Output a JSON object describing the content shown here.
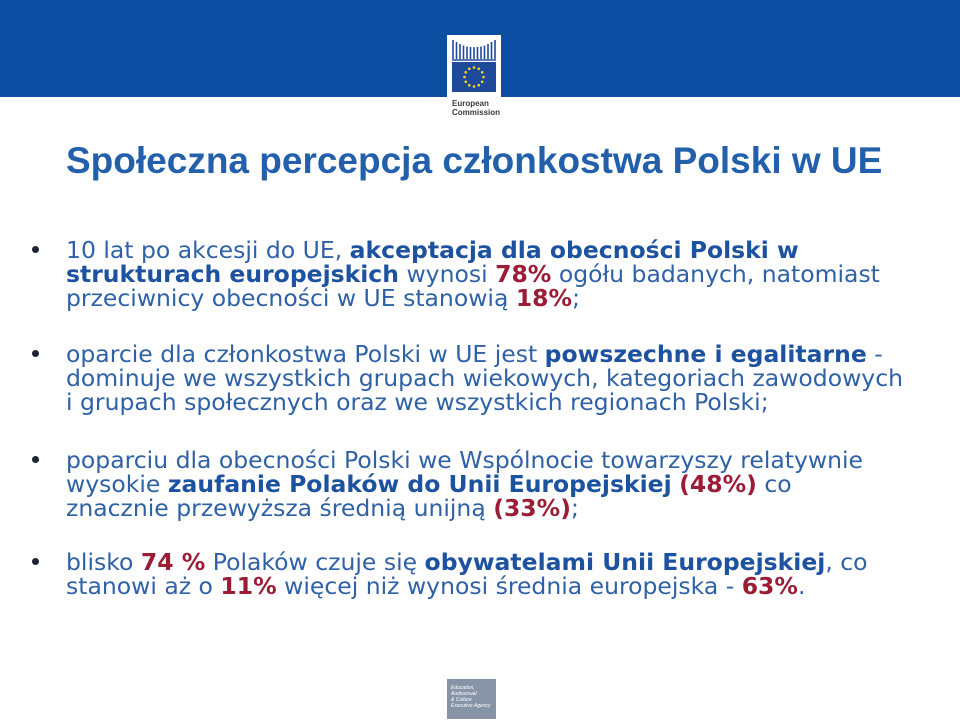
{
  "header": {
    "logo": {
      "icon": "european-commission-logo",
      "lines": [
        "European",
        "Commission"
      ]
    }
  },
  "title": "Społeczna percepcja członkostwa Polski w UE",
  "bullets": [
    {
      "segments": [
        {
          "normal": "10 lat po akcesji do UE, "
        },
        {
          "bold": "akceptacja dla obecności Polski w"
        },
        {
          "bold": "strukturach europejskich"
        },
        {
          "normal": " wynosi "
        },
        {
          "highlight": "78%"
        },
        {
          "normal": " ogółu badanych, natomiast"
        },
        {
          "normal": "przeciwnicy obecności w UE stanowią "
        },
        {
          "highlight": "18%"
        },
        {
          "normal": ";"
        }
      ]
    },
    {
      "segments": [
        {
          "normal": "oparcie dla członkostwa Polski w UE jest "
        },
        {
          "bold": "powszechne i egalitarne"
        },
        {
          "normal": " -"
        },
        {
          "normal": "dominuje we wszystkich grupach wiekowych, kategoriach zawodowych"
        },
        {
          "normal": "i grupach społecznych oraz we wszystkich regionach Polski;"
        }
      ]
    },
    {
      "segments": [
        {
          "normal": "poparciu dla obecności Polski we Wspólnocie towarzyszy relatywnie"
        },
        {
          "normal": "wysokie "
        },
        {
          "bold": "zaufanie Polaków do Unii Europejskiej"
        },
        {
          "highlight": "(48%)"
        },
        {
          "normal": " co"
        },
        {
          "normal": "znacznie przewyższa średnią unijną "
        },
        {
          "highlight": "(33%)"
        },
        {
          "normal": ";"
        }
      ]
    },
    {
      "segments": [
        {
          "normal": "blisko "
        },
        {
          "highlight": "74 %"
        },
        {
          "normal": " Polaków czuje się "
        },
        {
          "bold": "obywatelami Unii Europejskiej"
        },
        {
          "normal": ", co"
        },
        {
          "normal": "stanowi aż o "
        },
        {
          "highlight": "11%"
        },
        {
          "normal": " więcej niż wynosi średnia europejska - "
        },
        {
          "highlight": "63%"
        },
        {
          "normal": "."
        }
      ]
    }
  ],
  "footer": {
    "logo": {
      "icon": "eacea-logo",
      "lines": [
        "Education,",
        "Audiovisual",
        "& Culture",
        "Executive Agency"
      ]
    }
  },
  "colors": {
    "band": "#0b4ea2",
    "title": "#2360ab",
    "text": "#2f61a6",
    "emphasis": "#1c52a0",
    "highlight": "#9b1d35",
    "bullet": "#1f2433",
    "flag": "#1f4a9c",
    "stars": "#ffd617",
    "footer_logo": "#8793a7"
  }
}
